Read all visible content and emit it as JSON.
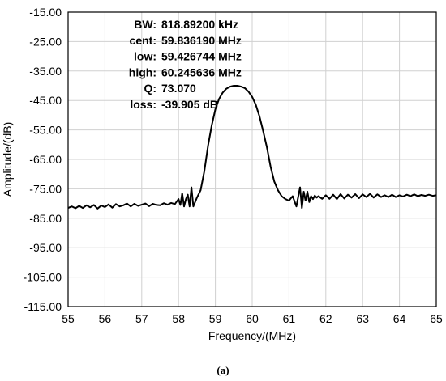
{
  "chart_data": {
    "type": "line",
    "xlabel": "Frequency/(MHz)",
    "ylabel": "Amplitude/(dB)",
    "xlim": [
      55,
      65
    ],
    "ylim": [
      -115,
      -15
    ],
    "x_ticks": [
      "55",
      "56",
      "57",
      "58",
      "59",
      "60",
      "61",
      "62",
      "63",
      "64",
      "65"
    ],
    "y_ticks": [
      "-15.00",
      "-25.00",
      "-35.00",
      "-45.00",
      "-55.00",
      "-65.00",
      "-75.00",
      "-85.00",
      "-95.00",
      "-105.00",
      "-115.00"
    ],
    "grid": true,
    "annotations": [
      {
        "label": "BW:",
        "value": "818.89200 kHz"
      },
      {
        "label": "cent:",
        "value": "59.836190 MHz"
      },
      {
        "label": "low:",
        "value": "59.426744 MHz"
      },
      {
        "label": "high:",
        "value": "60.245636 MHz"
      },
      {
        "label": "Q:",
        "value": "73.070"
      },
      {
        "label": "loss:",
        "value": "-39.905 dB"
      }
    ],
    "series": [
      {
        "color": "#000000",
        "x": [
          55.0,
          55.1,
          55.2,
          55.3,
          55.4,
          55.5,
          55.6,
          55.7,
          55.8,
          55.9,
          56.0,
          56.1,
          56.2,
          56.3,
          56.4,
          56.5,
          56.6,
          56.7,
          56.8,
          56.9,
          57.0,
          57.1,
          57.2,
          57.3,
          57.4,
          57.5,
          57.6,
          57.7,
          57.8,
          57.9,
          58.0,
          58.05,
          58.1,
          58.15,
          58.2,
          58.25,
          58.3,
          58.35,
          58.4,
          58.5,
          58.6,
          58.7,
          58.8,
          58.9,
          59.0,
          59.1,
          59.2,
          59.3,
          59.4,
          59.5,
          59.6,
          59.7,
          59.8,
          59.9,
          60.0,
          60.1,
          60.2,
          60.3,
          60.4,
          60.5,
          60.6,
          60.7,
          60.8,
          60.9,
          61.0,
          61.1,
          61.2,
          61.3,
          61.35,
          61.4,
          61.45,
          61.5,
          61.55,
          61.6,
          61.65,
          61.7,
          61.75,
          61.8,
          61.9,
          62.0,
          62.1,
          62.2,
          62.3,
          62.4,
          62.5,
          62.6,
          62.7,
          62.8,
          62.9,
          63.0,
          63.1,
          63.2,
          63.3,
          63.4,
          63.5,
          63.6,
          63.7,
          63.8,
          63.9,
          64.0,
          64.1,
          64.2,
          64.3,
          64.4,
          64.5,
          64.6,
          64.7,
          64.8,
          64.9,
          65.0
        ],
        "y": [
          -81.5,
          -81.0,
          -81.6,
          -80.8,
          -81.5,
          -80.6,
          -81.3,
          -80.5,
          -81.7,
          -80.7,
          -81.2,
          -80.3,
          -81.4,
          -80.2,
          -81.0,
          -80.6,
          -80.0,
          -81.0,
          -80.1,
          -80.8,
          -80.4,
          -80.0,
          -80.9,
          -80.1,
          -80.5,
          -80.6,
          -79.9,
          -80.4,
          -79.8,
          -80.2,
          -78.5,
          -80.5,
          -76.5,
          -81.0,
          -78.5,
          -77.0,
          -81.0,
          -74.5,
          -81.0,
          -78.0,
          -75.5,
          -69.0,
          -60.5,
          -53.5,
          -48.0,
          -44.5,
          -42.3,
          -41.0,
          -40.3,
          -40.0,
          -40.0,
          -40.3,
          -40.8,
          -42.0,
          -43.8,
          -46.5,
          -50.5,
          -55.5,
          -61.0,
          -67.5,
          -72.5,
          -75.5,
          -77.5,
          -78.5,
          -79.0,
          -77.5,
          -81.0,
          -74.5,
          -81.5,
          -76.0,
          -79.0,
          -76.0,
          -79.5,
          -77.5,
          -78.5,
          -77.3,
          -78.0,
          -77.5,
          -78.4,
          -77.2,
          -78.4,
          -77.0,
          -78.5,
          -76.8,
          -78.3,
          -77.0,
          -78.0,
          -76.8,
          -78.2,
          -76.9,
          -77.8,
          -76.7,
          -78.0,
          -76.9,
          -77.8,
          -77.2,
          -77.8,
          -77.0,
          -77.8,
          -77.2,
          -77.6,
          -77.0,
          -77.5,
          -76.9,
          -77.5,
          -77.1,
          -77.4,
          -77.0,
          -77.4,
          -77.2
        ]
      }
    ]
  },
  "caption": "(a)"
}
